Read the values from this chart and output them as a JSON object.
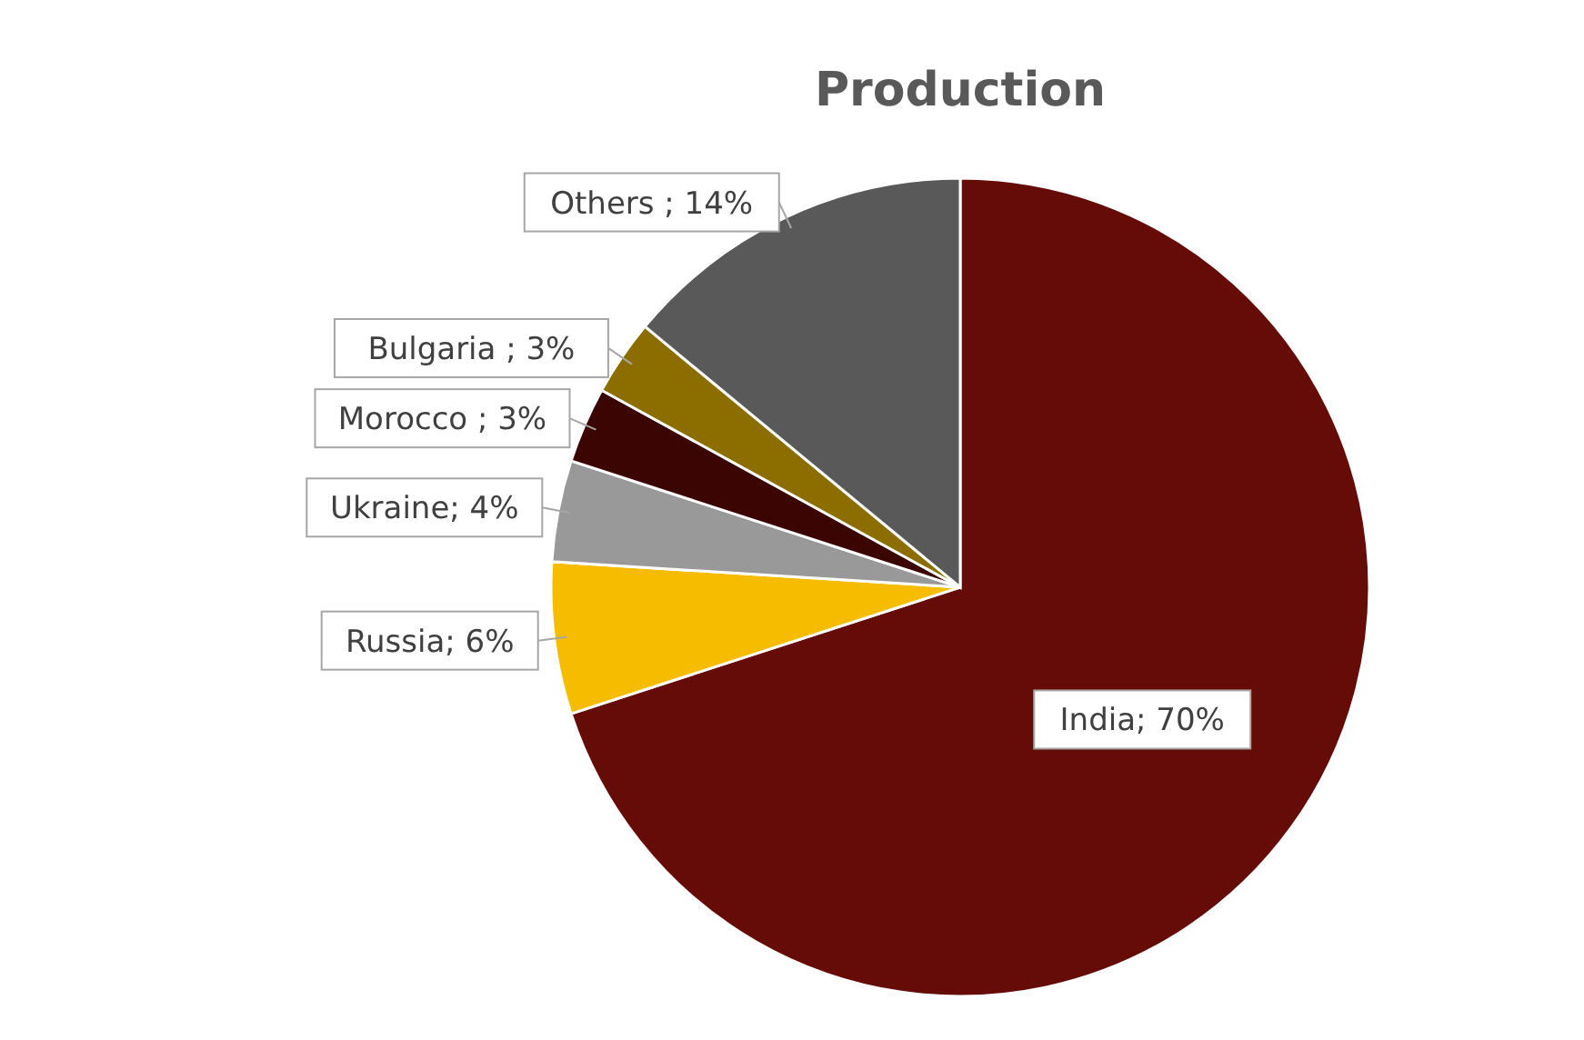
{
  "chart_data": {
    "type": "pie",
    "title": "Production",
    "categories": [
      "India",
      "Russia",
      "Ukraine",
      "Morocco",
      "Bulgaria",
      "Others"
    ],
    "values": [
      70,
      6,
      4,
      3,
      3,
      14
    ],
    "colors": [
      "#650c09",
      "#f5bc00",
      "#999999",
      "#3a0503",
      "#8c6d00",
      "#595959"
    ],
    "value_labels": [
      "; 70%",
      "; 6%",
      "; 4%",
      " ; 3%",
      " ; 3%",
      " ; 14%"
    ]
  }
}
